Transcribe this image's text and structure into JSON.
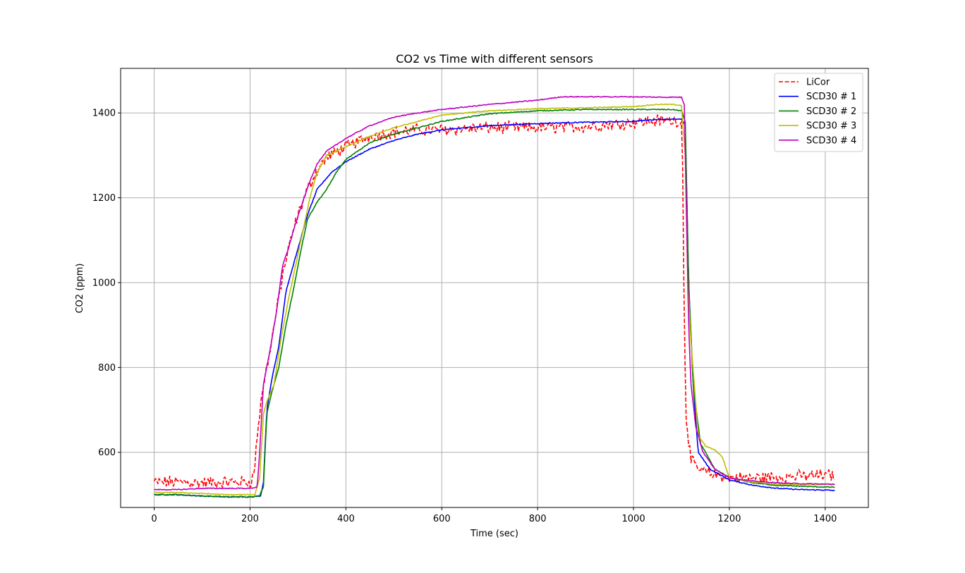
{
  "chart_data": {
    "type": "line",
    "title": "CO2 vs Time with different sensors",
    "xlabel": "Time (sec)",
    "ylabel": "CO2 (ppm)",
    "xlim": [
      -70,
      1490
    ],
    "ylim": [
      470,
      1505
    ],
    "xticks": [
      0,
      200,
      400,
      600,
      800,
      1000,
      1200,
      1400
    ],
    "yticks": [
      600,
      800,
      1000,
      1200,
      1400
    ],
    "grid": true,
    "legend_position": "top-right",
    "series": [
      {
        "name": "LiCor",
        "color": "#ff0000",
        "dash": "dashed",
        "noise": 12,
        "x": [
          0,
          50,
          100,
          150,
          200,
          208,
          215,
          225,
          240,
          255,
          270,
          285,
          300,
          320,
          340,
          360,
          400,
          450,
          500,
          550,
          600,
          700,
          800,
          900,
          1000,
          1050,
          1090,
          1100,
          1103,
          1106,
          1110,
          1120,
          1135,
          1160,
          1200,
          1250,
          1300,
          1350,
          1400,
          1420
        ],
        "y": [
          530,
          530,
          528,
          530,
          530,
          545,
          640,
          740,
          830,
          930,
          1030,
          1100,
          1160,
          1220,
          1265,
          1295,
          1320,
          1345,
          1355,
          1360,
          1360,
          1365,
          1365,
          1368,
          1378,
          1382,
          1382,
          1375,
          1250,
          900,
          680,
          580,
          560,
          550,
          540,
          540,
          542,
          544,
          546,
          546
        ]
      },
      {
        "name": "SCD30 # 1",
        "color": "#0000ff",
        "dash": "solid",
        "noise": 0,
        "x": [
          0,
          50,
          100,
          150,
          200,
          222,
          228,
          235,
          245,
          260,
          275,
          290,
          305,
          320,
          340,
          370,
          400,
          450,
          500,
          550,
          600,
          700,
          800,
          900,
          1000,
          1050,
          1080,
          1100,
          1108,
          1115,
          1125,
          1135,
          1160,
          1200,
          1250,
          1300,
          1350,
          1400,
          1420
        ],
        "y": [
          500,
          500,
          497,
          495,
          495,
          497,
          530,
          700,
          770,
          850,
          980,
          1040,
          1100,
          1160,
          1220,
          1260,
          1285,
          1315,
          1335,
          1350,
          1360,
          1370,
          1375,
          1378,
          1380,
          1385,
          1385,
          1385,
          1370,
          1000,
          750,
          600,
          560,
          535,
          522,
          515,
          512,
          511,
          510
        ]
      },
      {
        "name": "SCD30 # 2",
        "color": "#008000",
        "dash": "solid",
        "noise": 0,
        "x": [
          0,
          50,
          100,
          150,
          200,
          220,
          228,
          235,
          245,
          260,
          275,
          290,
          305,
          320,
          340,
          360,
          380,
          400,
          450,
          500,
          550,
          600,
          700,
          800,
          900,
          1000,
          1050,
          1080,
          1100,
          1108,
          1115,
          1125,
          1140,
          1170,
          1200,
          1250,
          1300,
          1350,
          1400,
          1420
        ],
        "y": [
          500,
          500,
          497,
          495,
          495,
          497,
          520,
          690,
          740,
          800,
          900,
          980,
          1070,
          1150,
          1190,
          1220,
          1260,
          1290,
          1330,
          1350,
          1365,
          1380,
          1398,
          1405,
          1408,
          1408,
          1408,
          1408,
          1405,
          1380,
          1000,
          750,
          620,
          560,
          540,
          528,
          522,
          520,
          518,
          518
        ]
      },
      {
        "name": "SCD30 # 3",
        "color": "#bfbf00",
        "dash": "solid",
        "noise": 0,
        "x": [
          0,
          50,
          100,
          150,
          200,
          210,
          220,
          228,
          235,
          250,
          265,
          280,
          295,
          310,
          325,
          340,
          360,
          400,
          450,
          500,
          550,
          600,
          650,
          700,
          800,
          900,
          1000,
          1050,
          1080,
          1100,
          1108,
          1113,
          1120,
          1135,
          1150,
          1170,
          1185,
          1200,
          1250,
          1300,
          1350,
          1400,
          1420
        ],
        "y": [
          505,
          505,
          503,
          500,
          500,
          500,
          540,
          690,
          720,
          760,
          870,
          960,
          1040,
          1120,
          1200,
          1260,
          1300,
          1320,
          1345,
          1365,
          1380,
          1395,
          1400,
          1405,
          1410,
          1412,
          1415,
          1420,
          1420,
          1418,
          1300,
          1000,
          860,
          640,
          615,
          605,
          590,
          540,
          530,
          525,
          524,
          524,
          524
        ]
      },
      {
        "name": "SCD30 # 4",
        "color": "#bf00bf",
        "dash": "solid",
        "noise": 0,
        "x": [
          0,
          50,
          100,
          150,
          200,
          215,
          220,
          228,
          240,
          255,
          268,
          280,
          295,
          310,
          325,
          340,
          360,
          400,
          450,
          500,
          550,
          600,
          700,
          750,
          800,
          850,
          900,
          1000,
          1050,
          1080,
          1100,
          1106,
          1110,
          1115,
          1120,
          1130,
          1145,
          1170,
          1200,
          1250,
          1300,
          1350,
          1400,
          1420
        ],
        "y": [
          512,
          512,
          515,
          515,
          515,
          518,
          600,
          760,
          830,
          930,
          1040,
          1080,
          1140,
          1190,
          1240,
          1280,
          1310,
          1340,
          1370,
          1390,
          1400,
          1408,
          1420,
          1425,
          1430,
          1438,
          1438,
          1438,
          1437,
          1437,
          1437,
          1420,
          1200,
          900,
          760,
          660,
          600,
          560,
          540,
          532,
          528,
          526,
          525,
          525
        ]
      }
    ]
  }
}
